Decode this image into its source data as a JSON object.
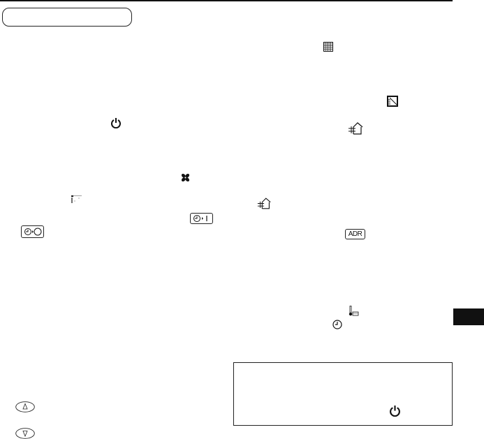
{
  "header": {
    "title_box_label": ""
  },
  "icons": {
    "grid": "grid-icon",
    "diagonal_panel": "panel-icon",
    "power": "power-icon",
    "house_vent": "house-ventilation-icon",
    "fan": "fan-icon",
    "flap": "louver-icon",
    "timer_on": "timer-on-icon",
    "timer_off": "timer-off-icon",
    "thermometer": "thermometer-icon",
    "clock": "clock-icon",
    "up": "up-button-icon",
    "down": "down-button-icon"
  },
  "labels": {
    "adr": "ADR"
  },
  "colors": {
    "ink": "#111111",
    "tab": "#111111"
  }
}
